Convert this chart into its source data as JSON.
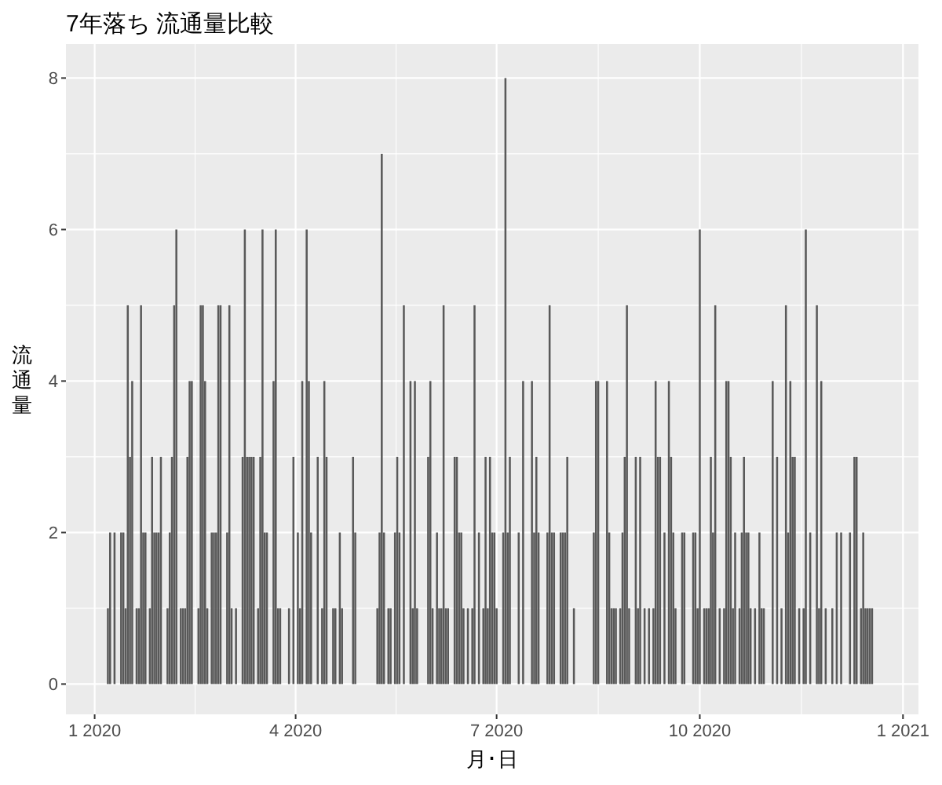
{
  "chart_data": {
    "type": "bar",
    "title": "7年落ち 流通量比較",
    "xlabel": "月･日",
    "ylabel": "流通量",
    "color": "#595959",
    "grid": true,
    "xlim": [
      "2019-12-19",
      "2021-01-08"
    ],
    "xticks": [
      {
        "value": "2020-01-01",
        "label": "1 2020"
      },
      {
        "value": "2020-04-01",
        "label": "4 2020"
      },
      {
        "value": "2020-07-01",
        "label": "7 2020"
      },
      {
        "value": "2020-10-01",
        "label": "10 2020"
      },
      {
        "value": "2021-01-01",
        "label": "1 2021"
      }
    ],
    "ylim": [
      -0.4,
      8.45
    ],
    "yticks": [
      0,
      2,
      4,
      6,
      8
    ],
    "x": [
      "2020-01-07",
      "2020-01-08",
      "2020-01-10",
      "2020-01-13",
      "2020-01-14",
      "2020-01-15",
      "2020-01-16",
      "2020-01-17",
      "2020-01-18",
      "2020-01-20",
      "2020-01-21",
      "2020-01-22",
      "2020-01-23",
      "2020-01-24",
      "2020-01-26",
      "2020-01-27",
      "2020-01-28",
      "2020-01-29",
      "2020-01-30",
      "2020-01-31",
      "2020-02-03",
      "2020-02-04",
      "2020-02-05",
      "2020-02-06",
      "2020-02-07",
      "2020-02-09",
      "2020-02-10",
      "2020-02-11",
      "2020-02-12",
      "2020-02-13",
      "2020-02-14",
      "2020-02-17",
      "2020-02-18",
      "2020-02-19",
      "2020-02-20",
      "2020-02-21",
      "2020-02-23",
      "2020-02-24",
      "2020-02-25",
      "2020-02-26",
      "2020-02-27",
      "2020-03-01",
      "2020-03-02",
      "2020-03-03",
      "2020-03-05",
      "2020-03-08",
      "2020-03-09",
      "2020-03-10",
      "2020-03-11",
      "2020-03-12",
      "2020-03-13",
      "2020-03-15",
      "2020-03-16",
      "2020-03-17",
      "2020-03-18",
      "2020-03-19",
      "2020-03-22",
      "2020-03-23",
      "2020-03-24",
      "2020-03-25",
      "2020-03-29",
      "2020-03-31",
      "2020-04-02",
      "2020-04-03",
      "2020-04-04",
      "2020-04-06",
      "2020-04-07",
      "2020-04-08",
      "2020-04-11",
      "2020-04-13",
      "2020-04-14",
      "2020-04-15",
      "2020-04-18",
      "2020-04-19",
      "2020-04-21",
      "2020-04-22",
      "2020-04-27",
      "2020-04-28",
      "2020-05-08",
      "2020-05-09",
      "2020-05-10",
      "2020-05-11",
      "2020-05-13",
      "2020-05-14",
      "2020-05-16",
      "2020-05-17",
      "2020-05-18",
      "2020-05-20",
      "2020-05-23",
      "2020-05-24",
      "2020-05-25",
      "2020-05-26",
      "2020-05-31",
      "2020-06-01",
      "2020-06-02",
      "2020-06-04",
      "2020-06-05",
      "2020-06-06",
      "2020-06-07",
      "2020-06-08",
      "2020-06-09",
      "2020-06-12",
      "2020-06-13",
      "2020-06-14",
      "2020-06-15",
      "2020-06-16",
      "2020-06-18",
      "2020-06-20",
      "2020-06-21",
      "2020-06-23",
      "2020-06-25",
      "2020-06-26",
      "2020-06-27",
      "2020-06-28",
      "2020-06-29",
      "2020-06-30",
      "2020-07-01",
      "2020-07-04",
      "2020-07-05",
      "2020-07-06",
      "2020-07-07",
      "2020-07-11",
      "2020-07-13",
      "2020-07-17",
      "2020-07-18",
      "2020-07-19",
      "2020-07-20",
      "2020-07-24",
      "2020-07-25",
      "2020-07-26",
      "2020-07-27",
      "2020-07-30",
      "2020-07-31",
      "2020-08-01",
      "2020-08-02",
      "2020-08-05",
      "2020-08-14",
      "2020-08-15",
      "2020-08-16",
      "2020-08-20",
      "2020-08-21",
      "2020-08-22",
      "2020-08-23",
      "2020-08-24",
      "2020-08-26",
      "2020-08-27",
      "2020-08-28",
      "2020-08-29",
      "2020-08-30",
      "2020-09-02",
      "2020-09-03",
      "2020-09-04",
      "2020-09-06",
      "2020-09-08",
      "2020-09-10",
      "2020-09-11",
      "2020-09-12",
      "2020-09-13",
      "2020-09-15",
      "2020-09-17",
      "2020-09-18",
      "2020-09-19",
      "2020-09-20",
      "2020-09-23",
      "2020-09-24",
      "2020-09-28",
      "2020-09-29",
      "2020-09-30",
      "2020-10-01",
      "2020-10-03",
      "2020-10-04",
      "2020-10-05",
      "2020-10-06",
      "2020-10-07",
      "2020-10-08",
      "2020-10-10",
      "2020-10-12",
      "2020-10-13",
      "2020-10-14",
      "2020-10-15",
      "2020-10-16",
      "2020-10-17",
      "2020-10-19",
      "2020-10-20",
      "2020-10-21",
      "2020-10-22",
      "2020-10-23",
      "2020-10-24",
      "2020-10-26",
      "2020-10-28",
      "2020-10-29",
      "2020-10-30",
      "2020-11-03",
      "2020-11-05",
      "2020-11-07",
      "2020-11-09",
      "2020-11-10",
      "2020-11-11",
      "2020-11-12",
      "2020-11-13",
      "2020-11-15",
      "2020-11-17",
      "2020-11-18",
      "2020-11-20",
      "2020-11-23",
      "2020-11-24",
      "2020-11-25",
      "2020-11-27",
      "2020-11-30",
      "2020-12-02",
      "2020-12-04",
      "2020-12-08",
      "2020-12-10",
      "2020-12-11",
      "2020-12-13",
      "2020-12-14",
      "2020-12-15",
      "2020-12-16",
      "2020-12-17",
      "2020-12-18"
    ],
    "values": [
      1,
      2,
      2,
      2,
      2,
      1,
      5,
      3,
      4,
      1,
      1,
      5,
      2,
      2,
      1,
      3,
      2,
      2,
      2,
      3,
      1,
      2,
      3,
      5,
      6,
      1,
      1,
      1,
      3,
      4,
      4,
      1,
      5,
      5,
      4,
      1,
      2,
      2,
      2,
      5,
      5,
      2,
      5,
      1,
      1,
      3,
      6,
      3,
      3,
      3,
      3,
      1,
      3,
      6,
      2,
      2,
      4,
      6,
      1,
      1,
      1,
      3,
      2,
      1,
      4,
      6,
      4,
      2,
      3,
      1,
      4,
      3,
      1,
      1,
      2,
      1,
      3,
      2,
      1,
      2,
      7,
      2,
      1,
      1,
      2,
      3,
      2,
      5,
      4,
      1,
      4,
      1,
      3,
      4,
      1,
      2,
      1,
      1,
      5,
      1,
      1,
      3,
      3,
      2,
      2,
      1,
      1,
      1,
      5,
      2,
      1,
      3,
      1,
      3,
      2,
      2,
      1,
      2,
      8,
      2,
      3,
      2,
      4,
      4,
      2,
      3,
      2,
      2,
      5,
      2,
      2,
      2,
      2,
      2,
      3,
      1,
      2,
      4,
      4,
      4,
      2,
      1,
      1,
      1,
      1,
      2,
      3,
      5,
      1,
      3,
      1,
      3,
      1,
      1,
      1,
      4,
      3,
      3,
      2,
      4,
      3,
      2,
      1,
      2,
      2,
      2,
      2,
      1,
      6,
      1,
      1,
      1,
      3,
      2,
      5,
      1,
      1,
      4,
      4,
      3,
      1,
      2,
      1,
      2,
      3,
      2,
      2,
      1,
      1,
      2,
      1,
      1,
      4,
      3,
      1,
      5,
      2,
      4,
      3,
      3,
      1,
      1,
      6,
      2,
      5,
      1,
      4,
      1,
      1,
      2,
      2,
      2,
      3,
      3,
      1,
      2,
      1,
      1,
      1,
      1
    ]
  }
}
